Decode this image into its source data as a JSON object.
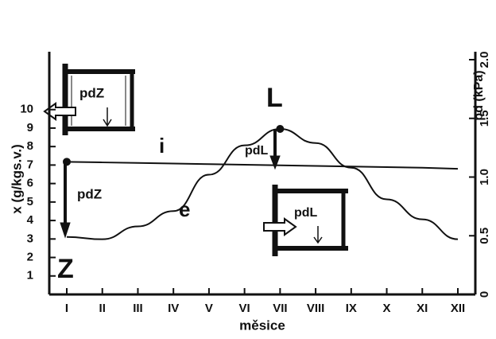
{
  "chart_data": {
    "type": "line",
    "xlabel": "měsice",
    "ylabel": "x (g/kgs.v.)",
    "y2label": "pd (kPa)",
    "categories": [
      "I",
      "II",
      "III",
      "IV",
      "V",
      "VI",
      "VII",
      "VIII",
      "IX",
      "X",
      "XI",
      "XII"
    ],
    "series": [
      {
        "name": "e",
        "color": "#111111",
        "axis": "y2",
        "values": [
          0.49,
          0.47,
          0.58,
          0.71,
          1.02,
          1.27,
          1.41,
          1.29,
          1.08,
          0.81,
          0.64,
          0.47
        ]
      },
      {
        "name": "i",
        "color": "#111111",
        "axis": "y2",
        "values": [
          1.13,
          1.125,
          1.12,
          1.115,
          1.11,
          1.105,
          1.1,
          1.095,
          1.09,
          1.085,
          1.08,
          1.07
        ]
      }
    ],
    "ylim": [
      0,
      12.7
    ],
    "yticks": [
      1,
      2,
      3,
      4,
      5,
      6,
      7,
      8,
      9,
      10
    ],
    "y2lim": [
      0,
      2.0
    ],
    "y2ticks": [
      0,
      0.5,
      {
        "value": 1,
        "label": "1.0"
      },
      1.5,
      {
        "value": 2,
        "label": "2.0"
      }
    ],
    "annotations": [
      "L",
      "Z",
      "pdZ",
      "pdZ",
      "pdL",
      "pdL"
    ]
  }
}
